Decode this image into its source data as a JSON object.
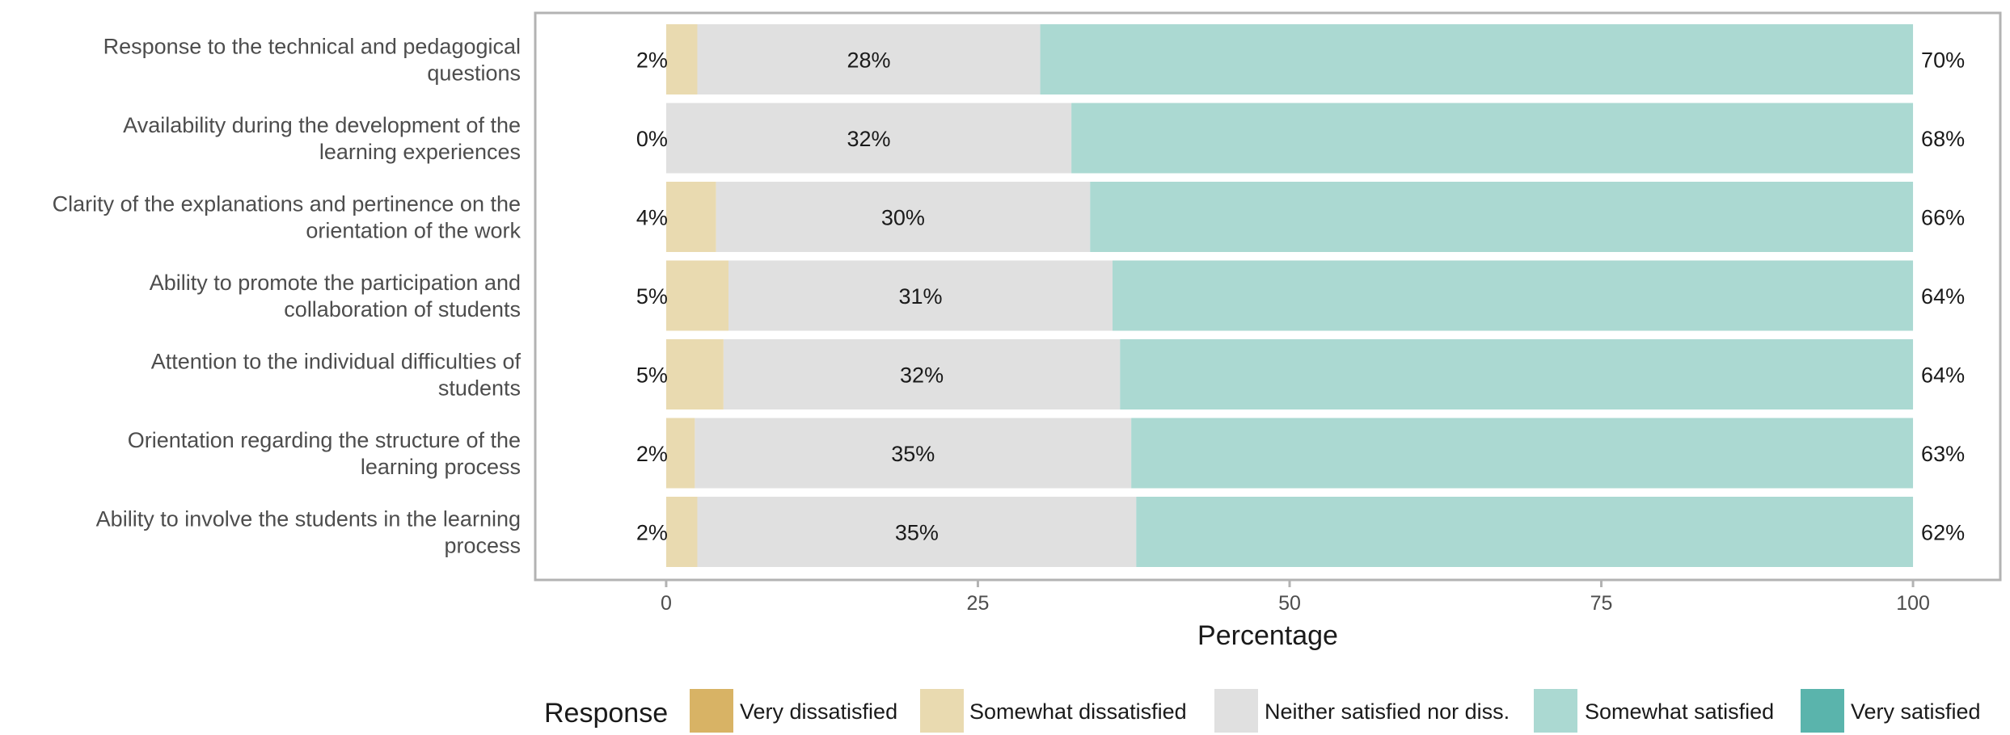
{
  "chart_data": {
    "type": "bar",
    "orientation": "horizontal-stacked",
    "categories": [
      "Response to the technical and pedagogical questions",
      "Availability during the development of the learning experiences",
      "Clarity of the explanations and pertinence on the orientation of the work",
      "Ability to promote the participation and collaboration of students",
      "Attention to the individual difficulties of students",
      "Orientation regarding the structure of the learning process",
      "Ability to involve the students in the learning process"
    ],
    "category_lines": [
      [
        "Response to the technical and pedagogical",
        "questions"
      ],
      [
        "Availability during the development of the",
        "learning experiences"
      ],
      [
        "Clarity of the explanations and pertinence on the",
        "orientation of the work"
      ],
      [
        "Ability to promote the participation and",
        "collaboration of students"
      ],
      [
        "Attention to the individual difficulties of",
        "students"
      ],
      [
        "Orientation regarding the structure of the",
        "learning process"
      ],
      [
        "Ability to involve the students in the learning",
        "process"
      ]
    ],
    "series": [
      {
        "name": "Very dissatisfied",
        "color": "#d8b365",
        "values": [
          0,
          0,
          0,
          0,
          0,
          0,
          0
        ]
      },
      {
        "name": "Somewhat dissatisfied",
        "color": "#e9dab0",
        "values": [
          2.5,
          0,
          4,
          5,
          4.6,
          2.3,
          2.5
        ]
      },
      {
        "name": "Neither satisfied nor diss.",
        "color": "#e0e0e0",
        "values": [
          27.5,
          32.5,
          30,
          30.8,
          31.8,
          35,
          35.2
        ]
      },
      {
        "name": "Somewhat satisfied",
        "color": "#abd9d2",
        "values": [
          70,
          67.5,
          66,
          64.2,
          63.6,
          62.7,
          62.3
        ]
      },
      {
        "name": "Very satisfied",
        "color": "#5ab4ac",
        "values": [
          0,
          0,
          0,
          0,
          0,
          0,
          0
        ]
      }
    ],
    "labels_left": [
      "2%",
      "0%",
      "4%",
      "5%",
      "5%",
      "2%",
      "2%"
    ],
    "labels_middle": [
      "28%",
      "32%",
      "30%",
      "31%",
      "32%",
      "35%",
      "35%"
    ],
    "labels_right": [
      "70%",
      "68%",
      "66%",
      "64%",
      "64%",
      "63%",
      "62%"
    ],
    "xlabel": "Percentage",
    "xlim": [
      -10.5,
      107
    ],
    "xticks": [
      0,
      25,
      50,
      75,
      100
    ],
    "xtick_labels": [
      "0",
      "25",
      "50",
      "75",
      "100"
    ],
    "legend_title": "Response",
    "legend_position": "bottom",
    "grid": false
  }
}
